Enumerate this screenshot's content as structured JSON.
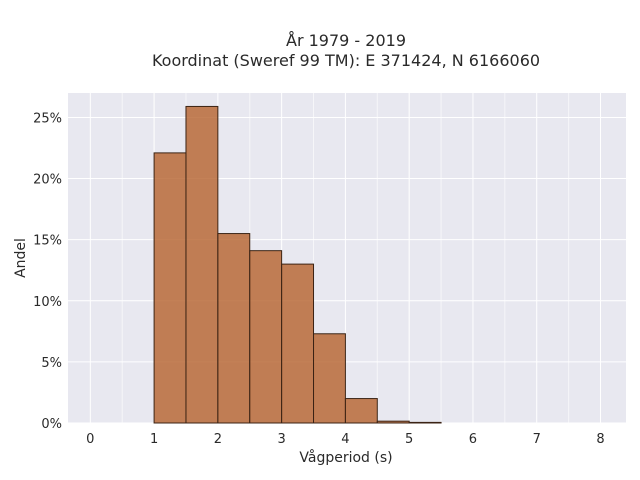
{
  "chart_data": {
    "type": "bar",
    "title_lines": [
      "År 1979 - 2019",
      "Koordinat (Sweref 99 TM): E 371424, N 6166060"
    ],
    "xlabel": "Vågperiod (s)",
    "ylabel": "Andel",
    "xlim": [
      -0.35,
      8.4
    ],
    "ylim": [
      0,
      27
    ],
    "x_ticks": [
      0,
      1,
      2,
      3,
      4,
      5,
      6,
      7,
      8
    ],
    "y_ticks": [
      0,
      5,
      10,
      15,
      20,
      25
    ],
    "y_tick_suffix": "%",
    "bin_width": 0.5,
    "bins": [
      {
        "x0": 1.0,
        "value": 22.1
      },
      {
        "x0": 1.5,
        "value": 25.9
      },
      {
        "x0": 2.0,
        "value": 15.5
      },
      {
        "x0": 2.5,
        "value": 14.1
      },
      {
        "x0": 3.0,
        "value": 13.0
      },
      {
        "x0": 3.5,
        "value": 7.3
      },
      {
        "x0": 4.0,
        "value": 2.0
      },
      {
        "x0": 4.5,
        "value": 0.15
      },
      {
        "x0": 5.0,
        "value": 0.05
      }
    ],
    "grid": true,
    "bar_color": "#b5622d",
    "plot_background": "#e8e8f0"
  }
}
